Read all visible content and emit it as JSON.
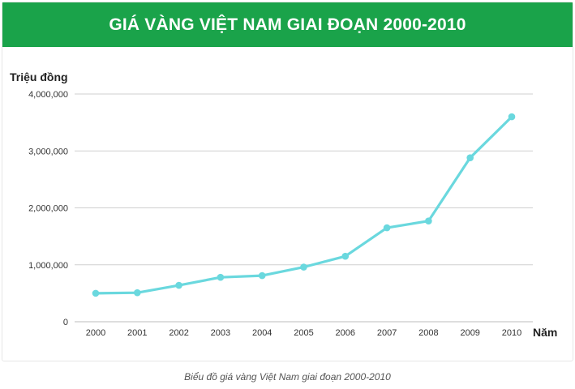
{
  "chart_data": {
    "type": "line",
    "title": "GIÁ VÀNG VIỆT NAM GIAI ĐOẠN 2000-2010",
    "ylabel": "Triệu đồng",
    "xlabel": "Năm",
    "caption": "Biểu đồ giá vàng Việt Nam giai đoạn 2000-2010",
    "ylim": [
      0,
      4000000
    ],
    "yticks": [
      0,
      1000000,
      2000000,
      3000000,
      4000000
    ],
    "ytick_labels": [
      "0",
      "1,000,000",
      "2,000,000",
      "3,000,000",
      "4,000,000"
    ],
    "grid": true,
    "line_color": "#6ad8de",
    "x": [
      "2000",
      "2001",
      "2002",
      "2003",
      "2004",
      "2005",
      "2006",
      "2007",
      "2008",
      "2009",
      "2010"
    ],
    "values": [
      500000,
      510000,
      640000,
      780000,
      810000,
      960000,
      1150000,
      1650000,
      1770000,
      2880000,
      3600000
    ]
  },
  "colors": {
    "banner": "#1aa34a",
    "grid": "#cfcfcf",
    "axis_text": "#333333"
  }
}
